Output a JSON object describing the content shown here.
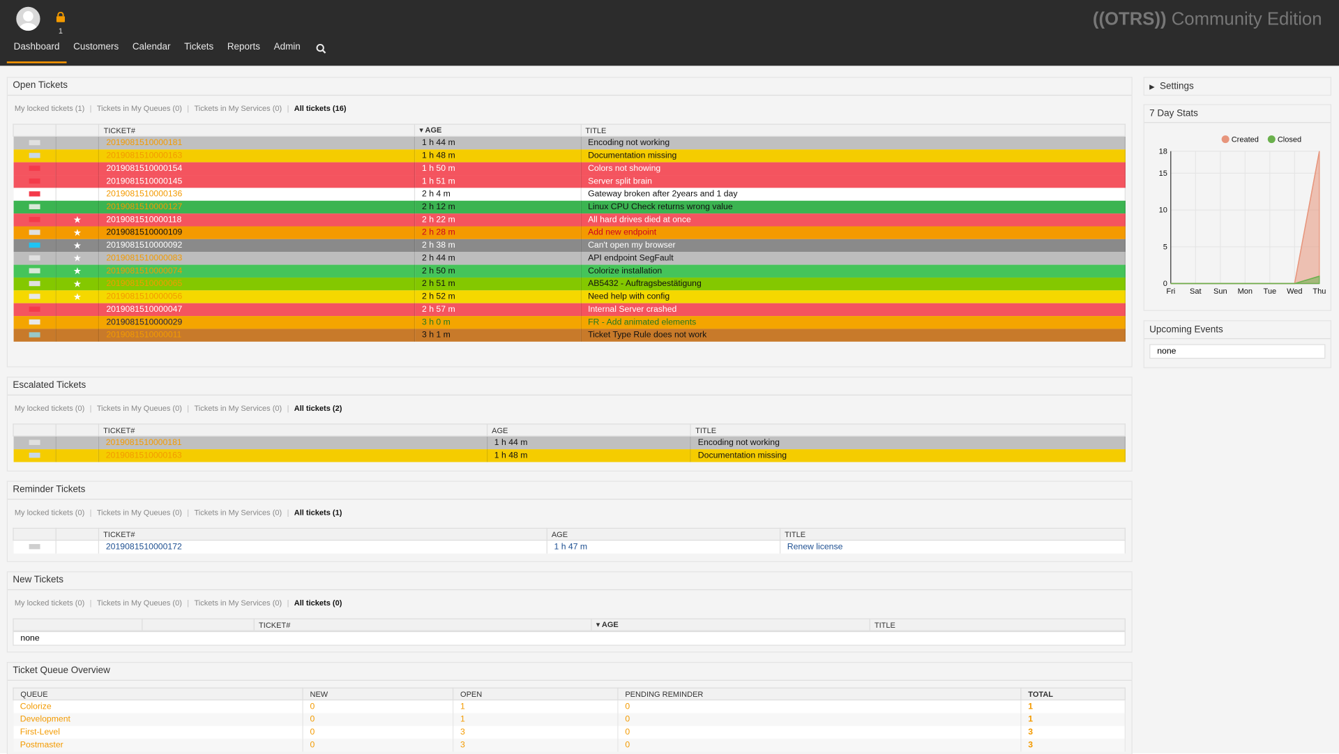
{
  "header": {
    "lock_count": "1",
    "brand_bold": "((OTRS))",
    "brand_rest": " Community Edition",
    "nav": [
      "Dashboard",
      "Customers",
      "Calendar",
      "Tickets",
      "Reports",
      "Admin"
    ]
  },
  "open_tickets": {
    "title": "Open Tickets",
    "filters": [
      "My locked tickets (1)",
      "Tickets in My Queues (0)",
      "Tickets in My Services (0)",
      "All tickets (16)"
    ],
    "headers": [
      "TICKET#",
      "▾ AGE",
      "TITLE"
    ],
    "rows": [
      {
        "num": "2019081510000181",
        "age": "1 h 44 m",
        "title": "Encoding not working",
        "bg": "#c0c0c0",
        "num_color": "#f39a00",
        "age_color": "#111",
        "title_color": "#111",
        "flag": "#e0e0e0",
        "star": false
      },
      {
        "num": "2019081510000163",
        "age": "1 h 48 m",
        "title": "Documentation missing",
        "bg": "#f5cc00",
        "num_color": "#f39a00",
        "age_color": "#111",
        "title_color": "#111",
        "flag": "#c8d8e8",
        "star": false
      },
      {
        "num": "2019081510000154",
        "age": "1 h 50 m",
        "title": "Colors not showing",
        "bg": "#f4545f",
        "num_color": "#fff",
        "age_color": "#fff",
        "title_color": "#fff",
        "flag": "#f43a4a",
        "star": false
      },
      {
        "num": "2019081510000145",
        "age": "1 h 51 m",
        "title": "Server split brain",
        "bg": "#f4545f",
        "num_color": "#fff",
        "age_color": "#fff",
        "title_color": "#fff",
        "flag": "#f43a4a",
        "star": false
      },
      {
        "num": "2019081510000136",
        "age": "2 h 4 m",
        "title": "Gateway broken after 2years and 1 day",
        "bg": "#ffffff",
        "num_color": "#f39a00",
        "age_color": "#111",
        "title_color": "#111",
        "flag": "#f43a4a",
        "star": false
      },
      {
        "num": "2019081510000127",
        "age": "2 h 12 m",
        "title": "Linux CPU Check returns wrong value",
        "bg": "#3bb451",
        "num_color": "#f39a00",
        "age_color": "#111",
        "title_color": "#111",
        "flag": "#d8e8d8",
        "star": false
      },
      {
        "num": "2019081510000118",
        "age": "2 h 22 m",
        "title": "All hard drives died at once",
        "bg": "#f4545f",
        "num_color": "#fff",
        "age_color": "#fff",
        "title_color": "#fff",
        "flag": "#f43a4a",
        "star": true
      },
      {
        "num": "2019081510000109",
        "age": "2 h 28 m",
        "title": "Add new endpoint",
        "bg": "#f49a00",
        "num_color": "#111",
        "age_color": "#c02",
        "title_color": "#c02",
        "flag": "#e0e0e0",
        "star": true
      },
      {
        "num": "2019081510000092",
        "age": "2 h 38 m",
        "title": "Can't open my browser",
        "bg": "#8a8a8a",
        "num_color": "#fff",
        "age_color": "#fff",
        "title_color": "#fff",
        "flag": "#1ec4f4",
        "star": true
      },
      {
        "num": "2019081510000083",
        "age": "2 h 44 m",
        "title": "API endpoint SegFault",
        "bg": "#bdbdbd",
        "num_color": "#f39a00",
        "age_color": "#111",
        "title_color": "#111",
        "flag": "#e0e0e0",
        "star": true
      },
      {
        "num": "2019081510000074",
        "age": "2 h 50 m",
        "title": "Colorize installation",
        "bg": "#45c45a",
        "num_color": "#f39a00",
        "age_color": "#111",
        "title_color": "#111",
        "flag": "#d8e8d8",
        "star": true
      },
      {
        "num": "2019081510000065",
        "age": "2 h 51 m",
        "title": "AB5432 - Auftragsbestätigung",
        "bg": "#84c800",
        "num_color": "#f39a00",
        "age_color": "#111",
        "title_color": "#111",
        "flag": "#e0e0e0",
        "star": true
      },
      {
        "num": "2019081510000056",
        "age": "2 h 52 m",
        "title": "Need help with config",
        "bg": "#f5d800",
        "num_color": "#f39a00",
        "age_color": "#111",
        "title_color": "#111",
        "flag": "#e8e8e8",
        "star": true
      },
      {
        "num": "2019081510000047",
        "age": "2 h 57 m",
        "title": "Internal Server crashed",
        "bg": "#f4545f",
        "num_color": "#fff",
        "age_color": "#fff",
        "title_color": "#fff",
        "flag": "#f43a4a",
        "star": false
      },
      {
        "num": "2019081510000029",
        "age": "3 h 0 m",
        "title": "FR - Add animated elements",
        "bg": "#f4a500",
        "num_color": "#224",
        "age_color": "#227722",
        "title_color": "#227722",
        "flag": "#e8e8e8",
        "star": false
      },
      {
        "num": "2019081510000011",
        "age": "3 h 1 m",
        "title": "Ticket Type Rule does not work",
        "bg": "#c87a2a",
        "num_color": "#f39a00",
        "age_color": "#111",
        "title_color": "#111",
        "flag": "#98c8c8",
        "star": false
      }
    ]
  },
  "escalated_tickets": {
    "title": "Escalated Tickets",
    "filters": [
      "My locked tickets (0)",
      "Tickets in My Queues (0)",
      "Tickets in My Services (0)",
      "All tickets (2)"
    ],
    "headers": [
      "TICKET#",
      "AGE",
      "TITLE"
    ],
    "rows": [
      {
        "num": "2019081510000181",
        "age": "1 h 44 m",
        "title": "Encoding not working",
        "bg": "#c0c0c0",
        "num_color": "#f39a00",
        "age_color": "#111",
        "title_color": "#111",
        "flag": "#e0e0e0",
        "star": false
      },
      {
        "num": "2019081510000163",
        "age": "1 h 48 m",
        "title": "Documentation missing",
        "bg": "#f5cc00",
        "num_color": "#f39a00",
        "age_color": "#111",
        "title_color": "#111",
        "flag": "#c8d8e8",
        "star": false
      }
    ]
  },
  "reminder_tickets": {
    "title": "Reminder Tickets",
    "filters": [
      "My locked tickets (0)",
      "Tickets in My Queues (0)",
      "Tickets in My Services (0)",
      "All tickets (1)"
    ],
    "headers": [
      "TICKET#",
      "AGE",
      "TITLE"
    ],
    "rows": [
      {
        "num": "2019081510000172",
        "age": "1 h 47 m",
        "title": "Renew license",
        "bg": "#ffffff",
        "num_color": "#1d4f91",
        "age_color": "#1d4f91",
        "title_color": "#1d4f91",
        "flag": "#cfcfcf",
        "star": false
      }
    ]
  },
  "new_tickets": {
    "title": "New Tickets",
    "filters": [
      "My locked tickets (0)",
      "Tickets in My Queues (0)",
      "Tickets in My Services (0)",
      "All tickets (0)"
    ],
    "headers": [
      "TICKET#",
      "▾ AGE",
      "TITLE"
    ],
    "none": "none"
  },
  "queue_overview": {
    "title": "Ticket Queue Overview",
    "headers": [
      "QUEUE",
      "NEW",
      "OPEN",
      "PENDING REMINDER",
      "TOTAL"
    ],
    "rows": [
      [
        "Colorize",
        "0",
        "1",
        "0",
        "1"
      ],
      [
        "Development",
        "0",
        "1",
        "0",
        "1"
      ],
      [
        "First-Level",
        "0",
        "3",
        "0",
        "3"
      ],
      [
        "Postmaster",
        "0",
        "3",
        "0",
        "3"
      ]
    ]
  },
  "sidebar": {
    "settings": "Settings",
    "stats_title": "7 Day Stats",
    "events_title": "Upcoming Events",
    "events_none": "none"
  },
  "chart_data": {
    "type": "area",
    "title": "",
    "categories": [
      "Fri",
      "Sat",
      "Sun",
      "Mon",
      "Tue",
      "Wed",
      "Thu"
    ],
    "series": [
      {
        "name": "Created",
        "color": "#e7957c",
        "values": [
          0,
          0,
          0,
          0,
          0,
          0,
          18
        ]
      },
      {
        "name": "Closed",
        "color": "#6ab04c",
        "values": [
          0,
          0,
          0,
          0,
          0,
          0,
          1
        ]
      }
    ],
    "yticks": [
      0,
      5,
      10,
      15,
      18
    ],
    "ylim": [
      0,
      18
    ],
    "legend": "top-right",
    "grid": true
  }
}
